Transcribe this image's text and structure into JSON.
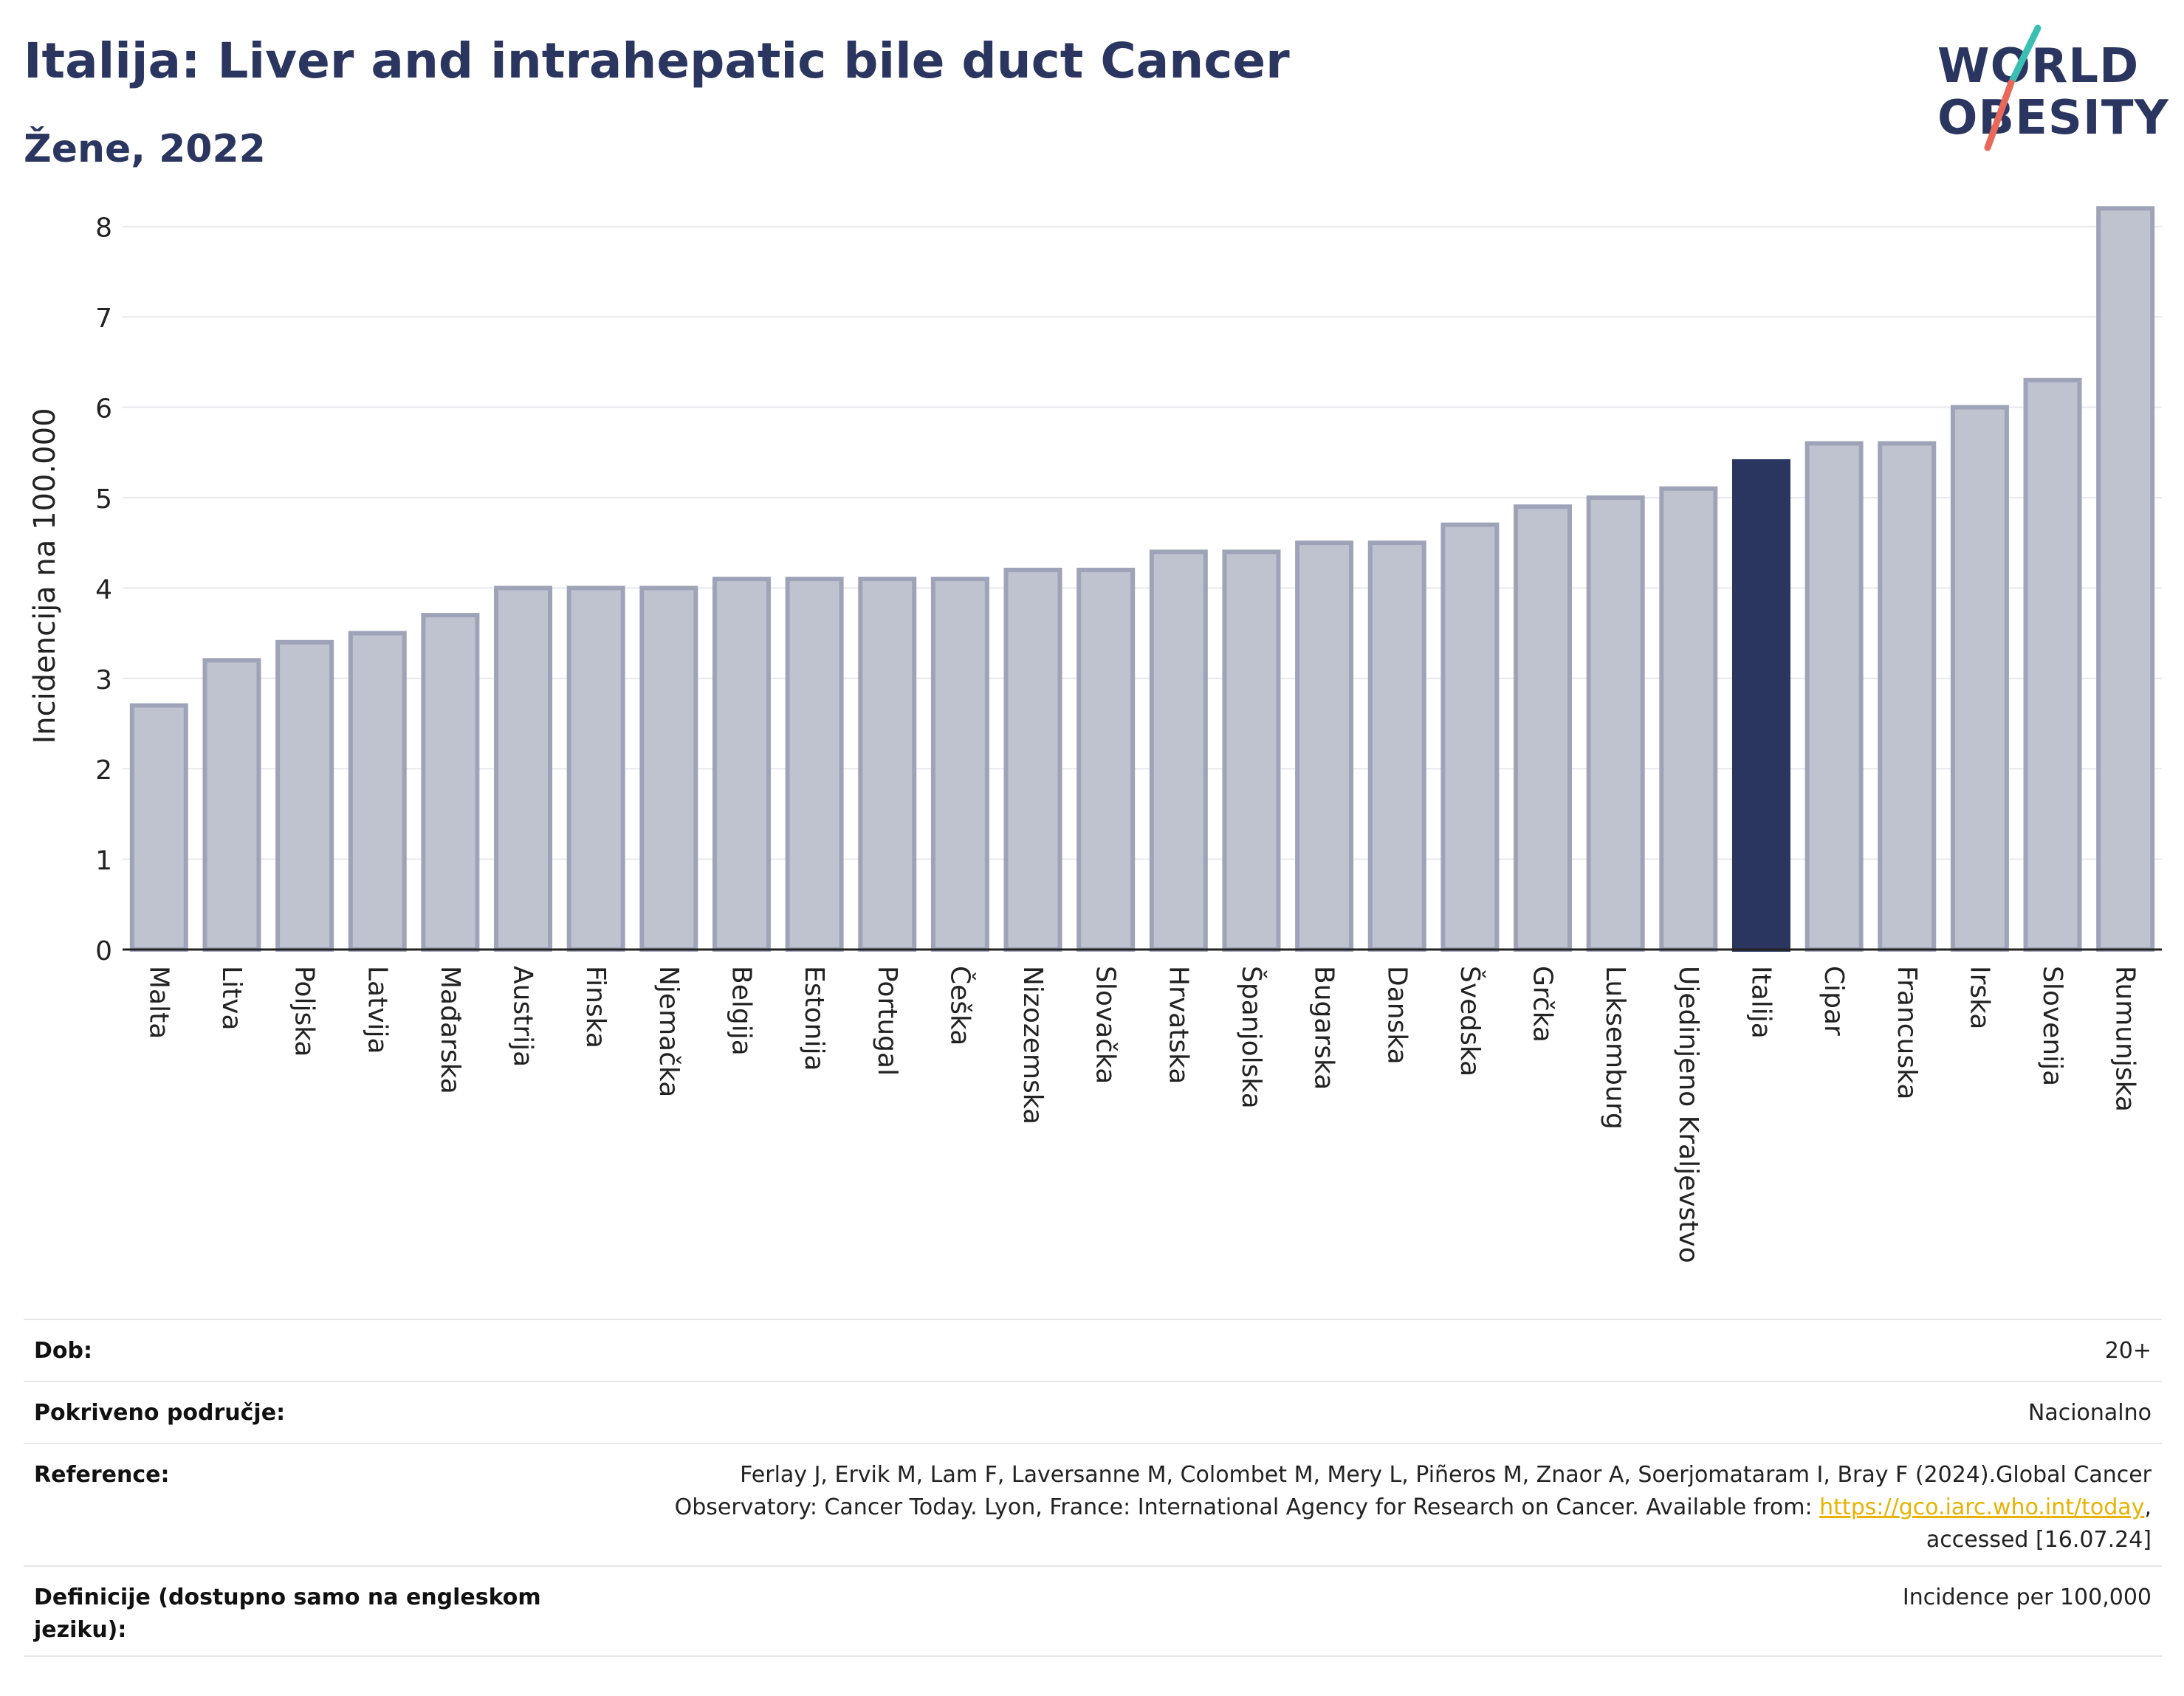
{
  "header": {
    "title": "Italija: Liver and intrahepatic bile duct Cancer",
    "subtitle": "Žene, 2022"
  },
  "logo": {
    "line1": "WORLD",
    "line2": "OBESITY",
    "slash_colors": [
      "#3bbfb3",
      "#e8695a"
    ]
  },
  "colors": {
    "bar_default": "#bfc2cf",
    "bar_default_edge": "#9ea3b8",
    "bar_highlight": "#2b3660",
    "text_dark": "#2b3660"
  },
  "chart_data": {
    "type": "bar",
    "ylabel": "Incidencija na 100.000",
    "ylim": [
      0,
      8.3
    ],
    "yticks": [
      0,
      1,
      2,
      3,
      4,
      5,
      6,
      7,
      8
    ],
    "grid": true,
    "highlight": "Italija",
    "categories": [
      "Malta",
      "Litva",
      "Poljska",
      "Latvija",
      "Mađarska",
      "Austrija",
      "Finska",
      "Njemačka",
      "Belgija",
      "Estonija",
      "Portugal",
      "Češka",
      "Nizozemska",
      "Slovačka",
      "Hrvatska",
      "Španjolska",
      "Bugarska",
      "Danska",
      "Švedska",
      "Grčka",
      "Luksemburg",
      "Ujedinjeno Kraljevstvo",
      "Italija",
      "Cipar",
      "Francuska",
      "Irska",
      "Slovenija",
      "Rumunjska"
    ],
    "values": [
      2.7,
      3.2,
      3.4,
      3.5,
      3.7,
      4.0,
      4.0,
      4.0,
      4.1,
      4.1,
      4.1,
      4.1,
      4.2,
      4.2,
      4.4,
      4.4,
      4.5,
      4.5,
      4.7,
      4.9,
      5.0,
      5.1,
      5.4,
      5.6,
      5.6,
      6.0,
      6.3,
      8.2
    ]
  },
  "footer": {
    "rows": [
      {
        "label": "Dob:",
        "value": "20+"
      },
      {
        "label": "Pokriveno područje:",
        "value": "Nacionalno"
      },
      {
        "label": "Reference:",
        "value_prefix": "Ferlay J, Ervik M, Lam F, Laversanne M, Colombet M, Mery L, Piñeros M, Znaor A, Soerjomataram I, Bray F (2024).Global Cancer Observatory: Cancer Today. Lyon, France: International Agency for Research on Cancer. Available from: ",
        "link_text": "https://gco.iarc.who.int/today",
        "value_suffix": ", accessed [16.07.24]"
      },
      {
        "label": "Definicije (dostupno samo na engleskom jeziku):",
        "value": "Incidence per 100,000"
      }
    ]
  }
}
